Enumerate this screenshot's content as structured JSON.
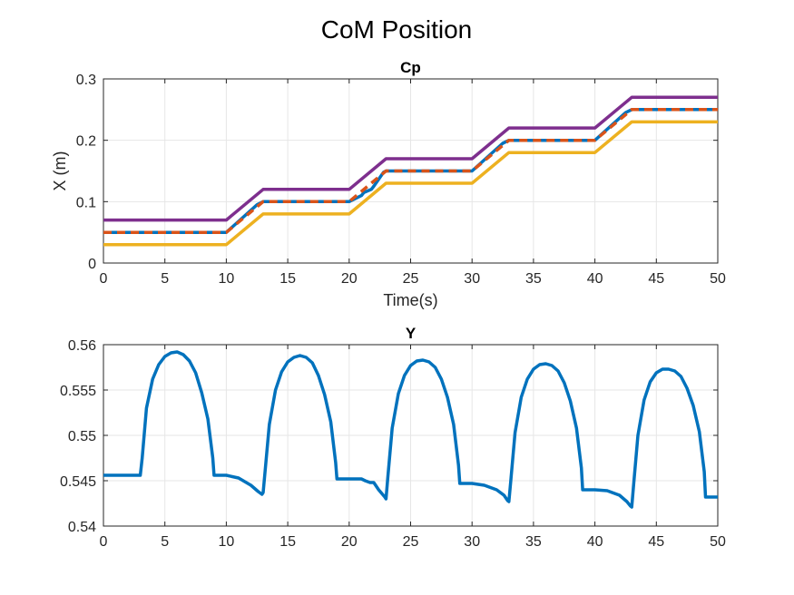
{
  "figure": {
    "title": "CoM Position"
  },
  "chart_data": [
    {
      "type": "line",
      "title": "Cp",
      "xlabel": "Time(s)",
      "ylabel": "X (m)",
      "xlim": [
        0,
        50
      ],
      "ylim": [
        0,
        0.3
      ],
      "xticks": [
        "0",
        "5",
        "10",
        "15",
        "20",
        "25",
        "30",
        "35",
        "40",
        "45",
        "50"
      ],
      "yticks": [
        "0",
        "0.1",
        "0.2",
        "0.3"
      ],
      "grid": true,
      "series": [
        {
          "color": "#7E2F8E",
          "style": "solid",
          "x": [
            0,
            10,
            13,
            20,
            23,
            30,
            33,
            40,
            43,
            50
          ],
          "y": [
            0.07,
            0.07,
            0.12,
            0.12,
            0.17,
            0.17,
            0.22,
            0.22,
            0.27,
            0.27
          ]
        },
        {
          "color": "#0072BD",
          "style": "solid",
          "x": [
            0,
            10,
            12.5,
            13,
            20,
            21,
            21.2,
            21.8,
            22,
            22.8,
            23,
            30,
            32.5,
            33,
            40,
            42.5,
            43,
            50
          ],
          "y": [
            0.05,
            0.05,
            0.095,
            0.1,
            0.1,
            0.11,
            0.115,
            0.12,
            0.125,
            0.148,
            0.15,
            0.15,
            0.195,
            0.2,
            0.2,
            0.245,
            0.25,
            0.25
          ]
        },
        {
          "color": "#D95319",
          "style": "dashed",
          "x": [
            0,
            10,
            13,
            20,
            23,
            30,
            33,
            40,
            43,
            50
          ],
          "y": [
            0.05,
            0.05,
            0.1,
            0.1,
            0.15,
            0.15,
            0.2,
            0.2,
            0.25,
            0.25
          ]
        },
        {
          "color": "#EDB120",
          "style": "solid",
          "x": [
            0,
            10,
            13,
            20,
            23,
            30,
            33,
            40,
            43,
            50
          ],
          "y": [
            0.03,
            0.03,
            0.08,
            0.08,
            0.13,
            0.13,
            0.18,
            0.18,
            0.23,
            0.23
          ]
        }
      ]
    },
    {
      "type": "line",
      "title": "Y",
      "xlabel": "",
      "ylabel": "",
      "xlim": [
        0,
        50
      ],
      "ylim": [
        0.54,
        0.56
      ],
      "xticks": [
        "0",
        "5",
        "10",
        "15",
        "20",
        "25",
        "30",
        "35",
        "40",
        "45",
        "50"
      ],
      "yticks": [
        "0.54",
        "0.545",
        "0.55",
        "0.555",
        "0.56"
      ],
      "grid": true,
      "series": [
        {
          "color": "#0072BD",
          "style": "solid",
          "x": [
            0,
            3,
            3.15,
            3.5,
            4,
            4.5,
            5,
            5.5,
            6,
            6.5,
            7,
            7.5,
            8,
            8.5,
            8.9,
            9,
            10,
            11,
            12,
            12.6,
            12.9,
            13,
            13.15,
            13.5,
            14,
            14.5,
            15,
            15.5,
            16,
            16.5,
            17,
            17.5,
            18,
            18.5,
            18.9,
            19,
            20,
            21,
            21.3,
            21.7,
            22,
            22.4,
            22.9,
            23,
            23.15,
            23.5,
            24,
            24.5,
            25,
            25.5,
            26,
            26.5,
            27,
            27.5,
            28,
            28.5,
            28.9,
            29,
            30,
            31,
            32,
            32.6,
            32.9,
            33,
            33.15,
            33.5,
            34,
            34.5,
            35,
            35.5,
            36,
            36.5,
            37,
            37.5,
            38,
            38.5,
            38.9,
            39,
            40,
            41,
            42,
            42.6,
            42.9,
            43,
            43.15,
            43.5,
            44,
            44.5,
            45,
            45.5,
            46,
            46.5,
            47,
            47.5,
            48,
            48.5,
            48.9,
            49,
            50
          ],
          "y": [
            0.5456,
            0.5456,
            0.5475,
            0.553,
            0.5562,
            0.5578,
            0.5587,
            0.5591,
            0.5592,
            0.5589,
            0.5582,
            0.5569,
            0.5547,
            0.5518,
            0.5475,
            0.5456,
            0.5456,
            0.5453,
            0.5445,
            0.5438,
            0.5435,
            0.5437,
            0.546,
            0.5512,
            0.555,
            0.557,
            0.5581,
            0.5586,
            0.5588,
            0.5586,
            0.558,
            0.5566,
            0.5545,
            0.5515,
            0.547,
            0.5452,
            0.5452,
            0.5452,
            0.545,
            0.5448,
            0.5448,
            0.544,
            0.5432,
            0.543,
            0.5455,
            0.5508,
            0.5546,
            0.5566,
            0.5577,
            0.5582,
            0.5583,
            0.5581,
            0.5575,
            0.5562,
            0.5542,
            0.5512,
            0.5467,
            0.5447,
            0.5447,
            0.5445,
            0.544,
            0.5434,
            0.5428,
            0.5427,
            0.545,
            0.5503,
            0.5542,
            0.5562,
            0.5573,
            0.5578,
            0.5579,
            0.5577,
            0.5571,
            0.5558,
            0.5538,
            0.5508,
            0.5464,
            0.544,
            0.544,
            0.5439,
            0.5434,
            0.5427,
            0.5422,
            0.5421,
            0.5446,
            0.55,
            0.5539,
            0.5559,
            0.5569,
            0.5573,
            0.5573,
            0.5571,
            0.5565,
            0.5552,
            0.5533,
            0.5504,
            0.546,
            0.5432,
            0.5432
          ]
        }
      ]
    }
  ]
}
